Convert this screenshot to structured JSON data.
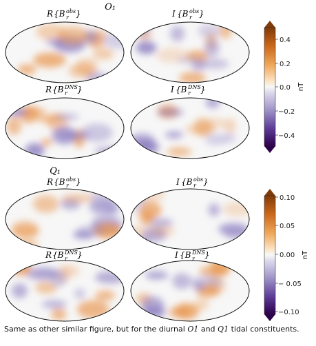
{
  "figure": {
    "groups": [
      {
        "title": "O₁",
        "panels": [
          {
            "id": "o1-real-obs",
            "op": "R",
            "sup": "obs"
          },
          {
            "id": "o1-imag-obs",
            "op": "I",
            "sup": "obs"
          },
          {
            "id": "o1-real-dns",
            "op": "R",
            "sup": "DNS"
          },
          {
            "id": "o1-imag-dns",
            "op": "I",
            "sup": "DNS"
          }
        ],
        "colorbar": {
          "unit": "nT",
          "ticks": [
            "0.4",
            "0.2",
            "0.0",
            "−0.2",
            "−0.4"
          ],
          "range": [
            -0.5,
            0.5
          ]
        }
      },
      {
        "title": "Q₁",
        "panels": [
          {
            "id": "q1-real-obs",
            "op": "R",
            "sup": "obs"
          },
          {
            "id": "q1-imag-obs",
            "op": "I",
            "sup": "obs"
          },
          {
            "id": "q1-real-dns",
            "op": "R",
            "sup": "DNS"
          },
          {
            "id": "q1-imag-dns",
            "op": "I",
            "sup": "DNS"
          }
        ],
        "colorbar": {
          "unit": "nT",
          "ticks": [
            "0.10",
            "0.05",
            "0.00",
            "− 0.05",
            "−0.10"
          ],
          "range": [
            -0.1,
            0.1
          ]
        }
      }
    ],
    "colors": {
      "positive": "#c8661a",
      "negative": "#3b1f7a",
      "neutral": "#f7f7f7",
      "coastline": "#222222"
    }
  },
  "caption": {
    "before": "Same as other similar figure, but for the diurnal ",
    "c1": "O1",
    "mid": " and ",
    "c2": "Q1",
    "after": " tidal constituents."
  }
}
